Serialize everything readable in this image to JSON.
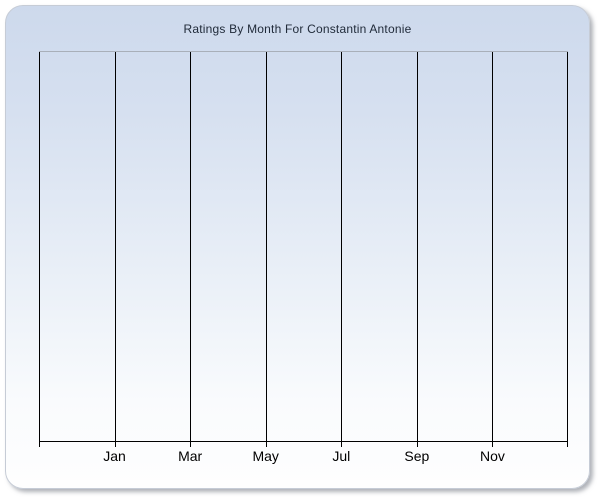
{
  "chart": {
    "title": "Ratings By Month For Constantin Antonie"
  },
  "chart_data": {
    "type": "line",
    "title": "Ratings By Month For Constantin Antonie",
    "x_tick_labels": [
      "Jan",
      "Mar",
      "May",
      "Jul",
      "Sep",
      "Nov"
    ],
    "x_tick_interval_months": 2,
    "gridline_count": 8,
    "series": [],
    "plot_is_empty": true,
    "xlabel": "",
    "ylabel": "",
    "y_tick_labels": [],
    "grid": "vertical",
    "legend": "none"
  },
  "theme": {
    "panel-grad-top": "#cdd9ec",
    "panel-grad-bottom": "#fefefe",
    "panel-border": "#c6ccd6",
    "plot-top-border": "#a9afb9",
    "grid-line": "#000000",
    "axis-line": "#000000",
    "title-color": "#212b3a",
    "label-color": "#000000"
  }
}
